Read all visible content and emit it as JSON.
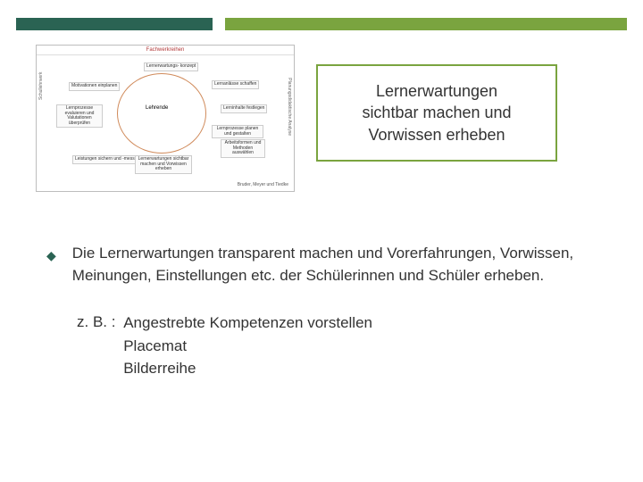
{
  "colors": {
    "bar_dark": "#2a6353",
    "bar_light": "#7aa43f",
    "box_border": "#7aa43f",
    "text": "#333333",
    "diagram_border": "#bdbdbd",
    "diagram_title": "#b23a3a",
    "circle": "#d08a5a"
  },
  "diagram": {
    "title": "Fachwerkreihen",
    "core": "Lehrende",
    "boxes": {
      "b1": "Lernerwartungs-\nkonzept",
      "b2": "Motivationen\neinplanen",
      "b3": "Lernanlässe\nschaffen",
      "b4": "Lernprozesse\nevaluieren und\nValutationen\nüberprüfen",
      "b5": "Lerninhalte\nfestlegen",
      "b6": "Lernprozesse planen\nund gestalten",
      "b7": "Arbeitsformen\nund Methoden\nauswählen",
      "b8": "Leistungen sichern\nund -messung",
      "b9": "Lernerwartungen\nsichtbar machen und\nVorwissen erheben"
    },
    "vlabel_left": "Schullehrwerk",
    "vlabel_right": "Planungsdidaktische Analyse",
    "footer": "Bruder, Meyer und Tiedke"
  },
  "highlight": {
    "line1": "Lernerwartungen",
    "line2": "sichtbar machen und",
    "line3": "Vorwissen erheben"
  },
  "bullet": {
    "text": "Die Lernerwartungen transparent machen und Vorerfahrungen, Vorwissen, Meinungen, Einstellungen etc. der Schülerinnen und Schüler erheben."
  },
  "examples": {
    "label": "z. B. :",
    "items": [
      "Angestrebte Kompetenzen vorstellen",
      "Placemat",
      "Bilderreihe"
    ]
  }
}
